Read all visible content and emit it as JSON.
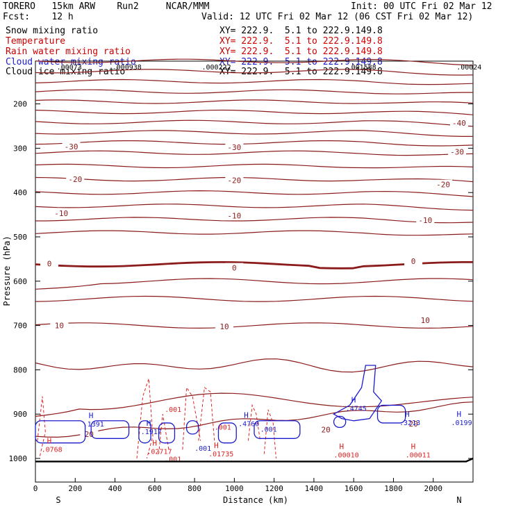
{
  "header": {
    "model": "TORERO   15km ARW    Run2     NCAR/MMM",
    "init": "Init: 00 UTC Fri 02 Mar 12",
    "fcst": "Fcst:    12 h",
    "valid": "Valid: 12 UTC Fri 02 Mar 12 (06 CST Fri 02 Mar 12)"
  },
  "legend": [
    {
      "label": "Snow mixing ratio",
      "xy": "XY= 222.9.  5.1 to 222.9.149.8",
      "color": "#000000"
    },
    {
      "label": "Temperature",
      "xy": "XY= 222.9.  5.1 to 222.9.149.8",
      "color": "#cc0000"
    },
    {
      "label": "Rain water mixing ratio",
      "xy": "XY= 222.9.  5.1 to 222.9.149.8",
      "color": "#cc0000"
    },
    {
      "label": "Cloud water mixing ratio",
      "xy": "XY= 222.9.  5.1 to 222.9.149.8",
      "color": "#1a1acc"
    },
    {
      "label": "Cloud ice mixing ratio",
      "xy": "XY= 222.9.  5.1 to 222.9.149.8",
      "color": "#000000"
    }
  ],
  "chart_data": {
    "type": "contour-cross-section",
    "xlabel": "Distance (km)",
    "ylabel": "Pressure (hPa)",
    "xlim": [
      0,
      2200
    ],
    "ylim": [
      1050,
      100
    ],
    "xticks": [
      0,
      200,
      400,
      600,
      800,
      1000,
      1200,
      1400,
      1600,
      1800,
      2000
    ],
    "yticks": [
      200,
      300,
      400,
      500,
      600,
      700,
      800,
      900,
      1000
    ],
    "end_labels": {
      "left": "S",
      "right": "N"
    },
    "temperature_contours": [
      {
        "value": -30,
        "label": "-30",
        "pressure": 296
      },
      {
        "value": -20,
        "label": "-20",
        "pressure": 372
      },
      {
        "value": -10,
        "label": "-10",
        "pressure": 455
      },
      {
        "value": 0,
        "label": "0",
        "pressure": 562
      },
      {
        "value": 10,
        "label": "10",
        "pressure": 700
      },
      {
        "value": 20,
        "label": "20",
        "pressure": 930
      },
      {
        "value": -40,
        "label": "-40",
        "pressure": 255
      }
    ],
    "maxima_labels": [
      {
        "x": 240,
        "p": 928,
        "text": ".1391",
        "series": "cloud_water"
      },
      {
        "x": 530,
        "p": 945,
        "text": ".1917",
        "series": "cloud_water"
      },
      {
        "x": 1020,
        "p": 927,
        "text": ".4760",
        "series": "cloud_water"
      },
      {
        "x": 1560,
        "p": 893,
        "text": ".4745",
        "series": "cloud_water"
      },
      {
        "x": 1830,
        "p": 925,
        "text": ".3213",
        "series": "cloud_water"
      },
      {
        "x": 2090,
        "p": 925,
        "text": ".0199",
        "series": "cloud_water"
      },
      {
        "x": 30,
        "p": 985,
        "text": ".0768",
        "series": "rain"
      },
      {
        "x": 560,
        "p": 990,
        "text": ".02717",
        "series": "rain"
      },
      {
        "x": 870,
        "p": 995,
        "text": ".01735",
        "series": "rain"
      },
      {
        "x": 1500,
        "p": 998,
        "text": ".00010",
        "series": "rain"
      },
      {
        "x": 1860,
        "p": 998,
        "text": ".00011",
        "series": "rain"
      },
      {
        "x": 650,
        "p": 895,
        "text": ".001",
        "series": "rain"
      },
      {
        "x": 900,
        "p": 935,
        "text": ".001",
        "series": "rain"
      },
      {
        "x": 800,
        "p": 983,
        "text": ".001",
        "series": "cloud_water"
      },
      {
        "x": 1130,
        "p": 940,
        "text": ".001",
        "series": "cloud_water"
      },
      {
        "x": 650,
        "p": 1007,
        "text": ".001",
        "series": "rain"
      }
    ],
    "top_labels": [
      {
        "x": 170,
        "text": ".00073"
      },
      {
        "x": 460,
        "text": ".000938"
      },
      {
        "x": 910,
        "text": ".000222"
      },
      {
        "x": 1640,
        "text": ".001588"
      },
      {
        "x": 2180,
        "text": ".00024"
      }
    ],
    "colors": {
      "temp": "#8b1a1a",
      "rain": "#dd2222",
      "cloud": "#1a1acc",
      "frame": "#000000"
    }
  }
}
